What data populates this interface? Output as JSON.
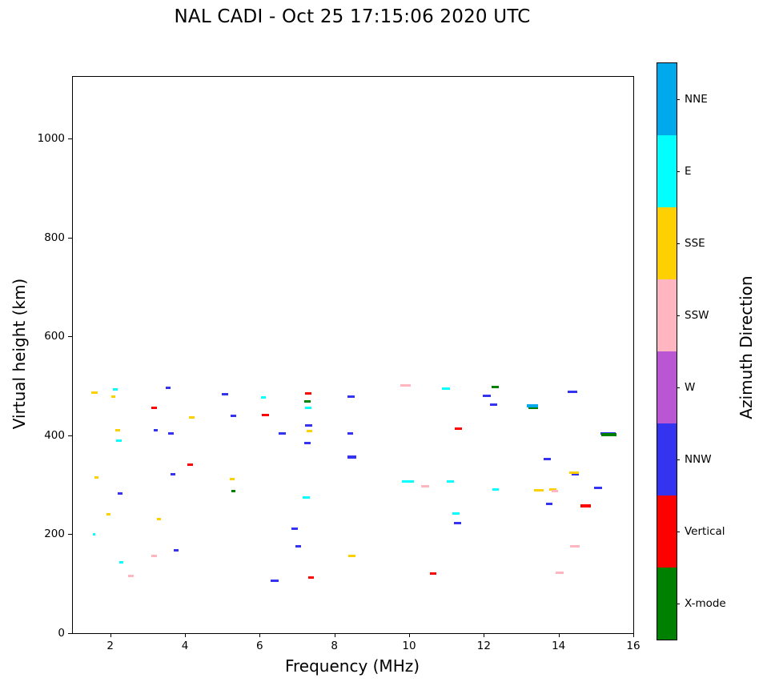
{
  "chart_data": {
    "type": "scatter",
    "title": "NAL CADI - Oct 25 17:15:06 2020 UTC",
    "xlabel": "Frequency (MHz)",
    "ylabel": "Virtual height (km)",
    "xlim": [
      1,
      16
    ],
    "ylim": [
      0,
      1125
    ],
    "xticks": [
      2,
      4,
      6,
      8,
      10,
      12,
      14,
      16
    ],
    "yticks": [
      0,
      200,
      400,
      600,
      800,
      1000
    ],
    "grid": false,
    "marker": "horizontal-dash",
    "colorbar": {
      "label": "Azimuth Direction",
      "categories": [
        {
          "key": "XMODE",
          "label": "X-mode",
          "color": "#008000"
        },
        {
          "key": "VERT",
          "label": "Vertical",
          "color": "#fe0000"
        },
        {
          "key": "NNW",
          "label": "NNW",
          "color": "#3333f0"
        },
        {
          "key": "W",
          "label": "W",
          "color": "#ba55d3"
        },
        {
          "key": "SSW",
          "label": "SSW",
          "color": "#ffb6c1"
        },
        {
          "key": "SSE",
          "label": "SSE",
          "color": "#ffd000"
        },
        {
          "key": "E",
          "label": "E",
          "color": "#00ffff"
        },
        {
          "key": "NNE",
          "label": "NNE",
          "color": "#00a8ec"
        }
      ]
    },
    "points": [
      {
        "x": 1.58,
        "y": 487,
        "c": "SSE",
        "w": 0.16
      },
      {
        "x": 1.63,
        "y": 315,
        "c": "SSE",
        "w": 0.1
      },
      {
        "x": 1.57,
        "y": 200,
        "c": "E",
        "w": 0.08
      },
      {
        "x": 1.95,
        "y": 240,
        "c": "SSE",
        "w": 0.1
      },
      {
        "x": 2.14,
        "y": 493,
        "c": "E",
        "w": 0.14
      },
      {
        "x": 2.08,
        "y": 479,
        "c": "SSE",
        "w": 0.12
      },
      {
        "x": 2.2,
        "y": 411,
        "c": "SSE",
        "w": 0.12
      },
      {
        "x": 2.23,
        "y": 390,
        "c": "E",
        "w": 0.14
      },
      {
        "x": 2.26,
        "y": 283,
        "c": "NNW",
        "w": 0.12
      },
      {
        "x": 2.3,
        "y": 143,
        "c": "E",
        "w": 0.12
      },
      {
        "x": 2.55,
        "y": 115,
        "c": "SSW",
        "w": 0.14
      },
      {
        "x": 3.18,
        "y": 456,
        "c": "VERT",
        "w": 0.14
      },
      {
        "x": 3.22,
        "y": 410,
        "c": "NNW",
        "w": 0.12
      },
      {
        "x": 3.3,
        "y": 231,
        "c": "SSE",
        "w": 0.12
      },
      {
        "x": 3.17,
        "y": 157,
        "c": "SSW",
        "w": 0.14
      },
      {
        "x": 3.55,
        "y": 496,
        "c": "NNW",
        "w": 0.12
      },
      {
        "x": 3.62,
        "y": 404,
        "c": "NNW",
        "w": 0.14
      },
      {
        "x": 3.68,
        "y": 322,
        "c": "NNW",
        "w": 0.12
      },
      {
        "x": 3.76,
        "y": 168,
        "c": "NNW",
        "w": 0.14
      },
      {
        "x": 4.18,
        "y": 437,
        "c": "SSE",
        "w": 0.14
      },
      {
        "x": 4.14,
        "y": 341,
        "c": "VERT",
        "w": 0.14
      },
      {
        "x": 5.07,
        "y": 483,
        "c": "NNW",
        "w": 0.18
      },
      {
        "x": 5.3,
        "y": 439,
        "c": "NNW",
        "w": 0.16
      },
      {
        "x": 5.27,
        "y": 311,
        "c": "SSE",
        "w": 0.12
      },
      {
        "x": 5.3,
        "y": 287,
        "c": "XMODE",
        "w": 0.12
      },
      {
        "x": 6.1,
        "y": 476,
        "c": "E",
        "w": 0.14
      },
      {
        "x": 6.15,
        "y": 441,
        "c": "VERT",
        "w": 0.2
      },
      {
        "x": 6.6,
        "y": 404,
        "c": "NNW",
        "w": 0.18
      },
      {
        "x": 6.4,
        "y": 106,
        "c": "NNW",
        "w": 0.2
      },
      {
        "x": 6.94,
        "y": 212,
        "c": "NNW",
        "w": 0.16
      },
      {
        "x": 7.03,
        "y": 176,
        "c": "NNW",
        "w": 0.14
      },
      {
        "x": 7.3,
        "y": 484,
        "c": "VERT",
        "w": 0.18
      },
      {
        "x": 7.28,
        "y": 468,
        "c": "XMODE",
        "w": 0.16
      },
      {
        "x": 7.3,
        "y": 455,
        "c": "E",
        "w": 0.16
      },
      {
        "x": 7.31,
        "y": 420,
        "c": "NNW",
        "w": 0.18
      },
      {
        "x": 7.33,
        "y": 408,
        "c": "SSE",
        "w": 0.14
      },
      {
        "x": 7.28,
        "y": 385,
        "c": "NNW",
        "w": 0.16
      },
      {
        "x": 7.25,
        "y": 274,
        "c": "E",
        "w": 0.18
      },
      {
        "x": 7.37,
        "y": 112,
        "c": "VERT",
        "w": 0.16
      },
      {
        "x": 8.45,
        "y": 479,
        "c": "NNW",
        "w": 0.18
      },
      {
        "x": 8.42,
        "y": 404,
        "c": "NNW",
        "w": 0.14
      },
      {
        "x": 8.47,
        "y": 356,
        "c": "NNW",
        "w": 0.24,
        "h": 4
      },
      {
        "x": 8.47,
        "y": 157,
        "c": "SSE",
        "w": 0.18
      },
      {
        "x": 9.9,
        "y": 501,
        "c": "SSW",
        "w": 0.28
      },
      {
        "x": 9.97,
        "y": 306,
        "c": "E",
        "w": 0.32
      },
      {
        "x": 10.43,
        "y": 297,
        "c": "SSW",
        "w": 0.22
      },
      {
        "x": 10.64,
        "y": 120,
        "c": "VERT",
        "w": 0.18
      },
      {
        "x": 10.98,
        "y": 494,
        "c": "E",
        "w": 0.22
      },
      {
        "x": 11.1,
        "y": 306,
        "c": "E",
        "w": 0.18
      },
      {
        "x": 11.25,
        "y": 242,
        "c": "E",
        "w": 0.18
      },
      {
        "x": 11.29,
        "y": 222,
        "c": "NNW",
        "w": 0.2
      },
      {
        "x": 11.32,
        "y": 414,
        "c": "VERT",
        "w": 0.2
      },
      {
        "x": 12.08,
        "y": 480,
        "c": "NNW",
        "w": 0.22
      },
      {
        "x": 12.3,
        "y": 497,
        "c": "XMODE",
        "w": 0.18
      },
      {
        "x": 12.26,
        "y": 462,
        "c": "NNW",
        "w": 0.18
      },
      {
        "x": 12.32,
        "y": 290,
        "c": "E",
        "w": 0.18
      },
      {
        "x": 13.3,
        "y": 460,
        "c": "NNE",
        "w": 0.32,
        "h": 4
      },
      {
        "x": 13.32,
        "y": 455,
        "c": "XMODE",
        "w": 0.26,
        "h": 2
      },
      {
        "x": 13.48,
        "y": 289,
        "c": "SSE",
        "w": 0.26
      },
      {
        "x": 13.7,
        "y": 352,
        "c": "NNW",
        "w": 0.18
      },
      {
        "x": 13.75,
        "y": 262,
        "c": "NNW",
        "w": 0.18
      },
      {
        "x": 13.85,
        "y": 291,
        "c": "SSE",
        "w": 0.2
      },
      {
        "x": 13.9,
        "y": 288,
        "c": "SSW",
        "w": 0.16
      },
      {
        "x": 14.03,
        "y": 122,
        "c": "SSW",
        "w": 0.22
      },
      {
        "x": 14.37,
        "y": 488,
        "c": "NNW",
        "w": 0.26
      },
      {
        "x": 14.42,
        "y": 325,
        "c": "SSE",
        "w": 0.26
      },
      {
        "x": 14.44,
        "y": 321,
        "c": "NNW",
        "w": 0.2,
        "h": 2
      },
      {
        "x": 14.44,
        "y": 176,
        "c": "SSW",
        "w": 0.26
      },
      {
        "x": 14.7,
        "y": 259,
        "c": "W",
        "w": 0.24,
        "h": 2
      },
      {
        "x": 14.72,
        "y": 257,
        "c": "VERT",
        "w": 0.28,
        "h": 4
      },
      {
        "x": 15.06,
        "y": 293,
        "c": "NNW",
        "w": 0.22
      },
      {
        "x": 15.33,
        "y": 404,
        "c": "NNW",
        "w": 0.4,
        "h": 3
      },
      {
        "x": 15.35,
        "y": 401,
        "c": "XMODE",
        "w": 0.42,
        "h": 4
      }
    ]
  }
}
